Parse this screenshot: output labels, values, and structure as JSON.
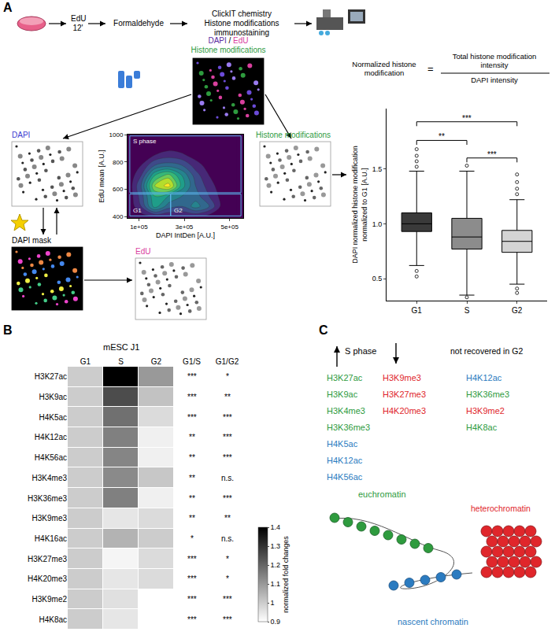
{
  "panel_letters": [
    "A",
    "B",
    "C"
  ],
  "workflow": {
    "steps": [
      [
        "EdU",
        "12'"
      ],
      [
        "Formaldehyde"
      ],
      [
        "ClickIT chemistry",
        "Histone modifications",
        "immunostaining"
      ]
    ]
  },
  "image_labels": {
    "overview": [
      {
        "text": "DAPI",
        "color": "#5a2ca0"
      },
      {
        "text": " / ",
        "color": "#000000"
      },
      {
        "text": "EdU",
        "color": "#d9409e"
      }
    ],
    "overview_sub": {
      "text": "Histone modifications",
      "color": "#2e9b3e"
    },
    "dapi": {
      "text": "DAPI",
      "color": "#3b3bd0"
    },
    "mask": {
      "text": "DAPI mask",
      "color": "#000000"
    },
    "edu": {
      "text": "EdU",
      "color": "#d9409e"
    },
    "histone": {
      "text": "Histone modifications",
      "color": "#2e9b3e"
    }
  },
  "formula": {
    "left": "Normalized histone modification",
    "sign": "=",
    "numerator": "Total histone modification intensity",
    "denominator": "DAPI intensity"
  },
  "chart_data": [
    {
      "type": "contour",
      "x_label": "DAPI IntDen [A.U.]",
      "y_label": "EdU mean [A.U.]",
      "xlim": [
        50000,
        560000
      ],
      "ylim": [
        390,
        1000
      ],
      "xticks": [
        {
          "value": 100000,
          "label": "1e+05"
        },
        {
          "value": 300000,
          "label": "3e+05"
        },
        {
          "value": 500000,
          "label": "5e+05"
        }
      ],
      "yticks": [
        400,
        600,
        800,
        1000
      ],
      "density": {
        "x": [
          50000,
          110000,
          170000,
          230000,
          290000,
          350000,
          410000,
          470000,
          530000
        ],
        "y": [
          400,
          475,
          550,
          625,
          700,
          775,
          850,
          925,
          1000
        ],
        "z": [
          [
            0,
            0.05,
            0.1,
            0.1,
            0.1,
            0.1,
            0.05,
            0.02,
            0
          ],
          [
            0,
            0.2,
            0.55,
            0.35,
            0.3,
            0.45,
            0.3,
            0.05,
            0
          ],
          [
            0,
            0.25,
            0.6,
            0.5,
            0.4,
            0.35,
            0.2,
            0.05,
            0
          ],
          [
            0,
            0.3,
            0.8,
            0.95,
            0.55,
            0.3,
            0.15,
            0.03,
            0
          ],
          [
            0,
            0.2,
            0.6,
            0.75,
            0.5,
            0.25,
            0.1,
            0.02,
            0
          ],
          [
            0,
            0.1,
            0.3,
            0.35,
            0.3,
            0.15,
            0.05,
            0,
            0
          ],
          [
            0,
            0.03,
            0.1,
            0.15,
            0.12,
            0.05,
            0.02,
            0,
            0
          ],
          [
            0,
            0,
            0.02,
            0.03,
            0.02,
            0,
            0,
            0,
            0
          ],
          [
            0,
            0,
            0,
            0,
            0,
            0,
            0,
            0,
            0
          ]
        ]
      },
      "gates": [
        {
          "label": "S phase",
          "x": [
            60000,
            550000
          ],
          "y": [
            575,
            990
          ]
        },
        {
          "label": "G1",
          "x": [
            60000,
            240000
          ],
          "y": [
            405,
            565
          ]
        },
        {
          "label": "G2",
          "x": [
            240000,
            550000
          ],
          "y": [
            405,
            565
          ]
        }
      ]
    },
    {
      "type": "box",
      "y_label": "DAPI normalized histone modification normalized to G1 [A.U.]",
      "categories": [
        "G1",
        "S",
        "G2"
      ],
      "colors": [
        "#3a3a3a",
        "#8c8c8c",
        "#d4d4d4"
      ],
      "q1": [
        0.93,
        0.77,
        0.74
      ],
      "median": [
        1.0,
        0.88,
        0.84
      ],
      "q3": [
        1.1,
        1.05,
        0.94
      ],
      "lower_fence": [
        0.62,
        0.35,
        0.45
      ],
      "upper_fence": [
        1.48,
        1.48,
        1.22
      ],
      "outliers": [
        [
          1.52,
          1.57,
          1.62,
          1.68,
          0.57,
          0.52
        ],
        [
          1.53,
          0.33
        ],
        [
          1.27,
          1.32,
          1.38,
          1.45,
          0.41,
          0.37
        ]
      ],
      "ylim": [
        0.3,
        2.05
      ],
      "yticks": [
        0.5,
        {
          "value": 1,
          "label": "1.0"
        },
        1.5
      ],
      "comparisons": [
        {
          "from": "G1",
          "to": "S",
          "label": "**",
          "y": 1.76
        },
        {
          "from": "S",
          "to": "G2",
          "label": "***",
          "y": 1.6
        },
        {
          "from": "G1",
          "to": "G2",
          "label": "***",
          "y": 1.93
        }
      ]
    },
    {
      "type": "heatmap",
      "title": "mESC J1",
      "columns": [
        "G1",
        "S",
        "G2"
      ],
      "rows": [
        "H3K27ac",
        "H3K9ac",
        "H4K5ac",
        "H4K12ac",
        "H4K56ac",
        "H3K4me3",
        "H3K36me3",
        "H3K9me3",
        "H4K16ac",
        "H3K27me3",
        "H4K20me3",
        "H3K9me2",
        "H4K8ac"
      ],
      "cells": [
        [
          1,
          1.42,
          1.1
        ],
        [
          1,
          1.25,
          1.02
        ],
        [
          1,
          1.18,
          0.97
        ],
        [
          1,
          1.15,
          0.93
        ],
        [
          1,
          1.14,
          0.93
        ],
        [
          1,
          1.13,
          1.01
        ],
        [
          1,
          1.15,
          0.93
        ],
        [
          1,
          0.95,
          0.97
        ],
        [
          1,
          1.05,
          1
        ],
        [
          1,
          0.92,
          0.97
        ],
        [
          1,
          0.95,
          0.97
        ],
        [
          1,
          0.96,
          0.9
        ],
        [
          1,
          0.95,
          0.9
        ]
      ],
      "significance": {
        "columns": [
          "G1/S",
          "G1/G2"
        ],
        "values": [
          [
            "***",
            "*"
          ],
          [
            "***",
            "**"
          ],
          [
            "***",
            "***"
          ],
          [
            "**",
            "***"
          ],
          [
            "**",
            "***"
          ],
          [
            "**",
            "n.s."
          ],
          [
            "**",
            "***"
          ],
          [
            "**",
            "**"
          ],
          [
            "*",
            "n.s."
          ],
          [
            "***",
            "*"
          ],
          [
            "***",
            "*"
          ],
          [
            "***",
            "***"
          ],
          [
            "***",
            "***"
          ]
        ]
      },
      "colorbar": {
        "label": "normalized fold changes",
        "range": [
          0.9,
          1.4
        ],
        "ticks": [
          0.9,
          1,
          1.1,
          1.2,
          1.3,
          1.4
        ]
      }
    }
  ],
  "panel_c": {
    "heading": "S phase",
    "up": [
      {
        "text": "H3K27ac",
        "color": "green"
      },
      {
        "text": "H3K9ac",
        "color": "green"
      },
      {
        "text": "H3K4me3",
        "color": "green"
      },
      {
        "text": "H3K36me3",
        "color": "green"
      },
      {
        "text": "H4K5ac",
        "color": "blue"
      },
      {
        "text": "H4K12ac",
        "color": "blue"
      },
      {
        "text": "H4K56ac",
        "color": "blue"
      }
    ],
    "down": [
      {
        "text": "H3K9me3",
        "color": "red"
      },
      {
        "text": "H3K27me3",
        "color": "red"
      },
      {
        "text": "H4K20me3",
        "color": "red"
      }
    ],
    "not_recovered_heading": "not recovered in G2",
    "not_recovered": [
      {
        "text": "H4K12ac",
        "color": "blue"
      },
      {
        "text": "H3K36me3",
        "color": "green"
      },
      {
        "text": "H3K9me2",
        "color": "red"
      },
      {
        "text": "H4K8ac",
        "color": "green"
      }
    ],
    "cartoon": [
      {
        "text": "euchromatin",
        "color": "green"
      },
      {
        "text": "heterochromatin",
        "color": "red"
      },
      {
        "text": "nascent chromatin",
        "color": "blue"
      }
    ],
    "palette": {
      "green": "#2e9b3e",
      "red": "#e0262b",
      "blue": "#2b7bc0"
    }
  }
}
